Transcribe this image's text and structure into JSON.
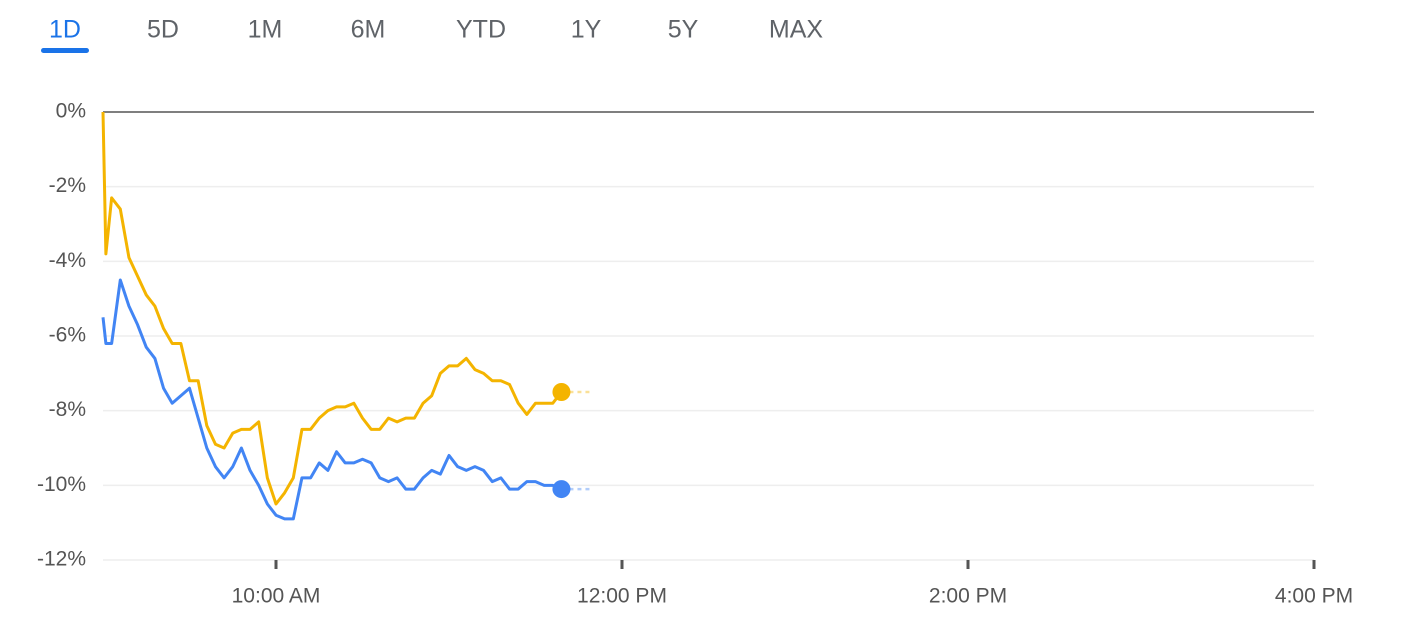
{
  "tabs": [
    "1D",
    "5D",
    "1M",
    "6M",
    "YTD",
    "1Y",
    "5Y",
    "MAX"
  ],
  "selected_tab": 0,
  "chart_data": {
    "type": "line",
    "x": [
      540,
      541,
      543,
      546,
      549,
      552,
      555,
      558,
      561,
      564,
      567,
      570,
      573,
      576,
      579,
      582,
      585,
      588,
      591,
      594,
      597,
      600,
      603,
      606,
      609,
      612,
      615,
      618,
      621,
      624,
      627,
      630,
      633,
      636,
      639,
      642,
      645,
      648,
      651,
      654,
      657,
      660,
      663,
      666,
      669,
      672,
      675,
      678,
      681,
      684,
      687,
      690,
      693,
      696,
      699
    ],
    "series": [
      {
        "color": "#f4b400",
        "values": [
          0,
          -3.8,
          -2.3,
          -2.6,
          -3.9,
          -4.4,
          -4.9,
          -5.2,
          -5.8,
          -6.2,
          -6.2,
          -7.2,
          -7.2,
          -8.4,
          -8.9,
          -9.0,
          -8.6,
          -8.5,
          -8.5,
          -8.3,
          -9.8,
          -10.5,
          -10.2,
          -9.8,
          -8.5,
          -8.5,
          -8.2,
          -8.0,
          -7.9,
          -7.9,
          -7.8,
          -8.2,
          -8.5,
          -8.5,
          -8.2,
          -8.3,
          -8.2,
          -8.2,
          -7.8,
          -7.6,
          -7.0,
          -6.8,
          -6.8,
          -6.6,
          -6.9,
          -7.0,
          -7.2,
          -7.2,
          -7.3,
          -7.8,
          -8.1,
          -7.8,
          -7.8,
          -7.8,
          -7.5
        ]
      },
      {
        "color": "#4285f4",
        "values": [
          -5.5,
          -6.2,
          -6.2,
          -4.5,
          -5.2,
          -5.7,
          -6.3,
          -6.6,
          -7.4,
          -7.8,
          -7.6,
          -7.4,
          -8.2,
          -9.0,
          -9.5,
          -9.8,
          -9.5,
          -9.0,
          -9.6,
          -10.0,
          -10.5,
          -10.8,
          -10.9,
          -10.9,
          -9.8,
          -9.8,
          -9.4,
          -9.6,
          -9.1,
          -9.4,
          -9.4,
          -9.3,
          -9.4,
          -9.8,
          -9.9,
          -9.8,
          -10.1,
          -10.1,
          -9.8,
          -9.6,
          -9.7,
          -9.2,
          -9.5,
          -9.6,
          -9.5,
          -9.6,
          -9.9,
          -9.8,
          -10.1,
          -10.1,
          -9.9,
          -9.9,
          -10.0,
          -10.0,
          -10.1
        ]
      }
    ],
    "xlim": [
      540,
      960
    ],
    "xticks": [
      {
        "value": 600,
        "label": "10:00 AM"
      },
      {
        "value": 720,
        "label": "12:00 PM"
      },
      {
        "value": 840,
        "label": "2:00 PM"
      },
      {
        "value": 960,
        "label": "4:00 PM"
      }
    ],
    "ylim": [
      -12,
      0
    ],
    "yticks": [
      {
        "value": 0,
        "label": "0%"
      },
      {
        "value": -2,
        "label": "-2%"
      },
      {
        "value": -4,
        "label": "-4%"
      },
      {
        "value": -6,
        "label": "-6%"
      },
      {
        "value": -8,
        "label": "-8%"
      },
      {
        "value": -10,
        "label": "-10%"
      },
      {
        "value": -12,
        "label": "-12%"
      }
    ],
    "grid": true
  }
}
